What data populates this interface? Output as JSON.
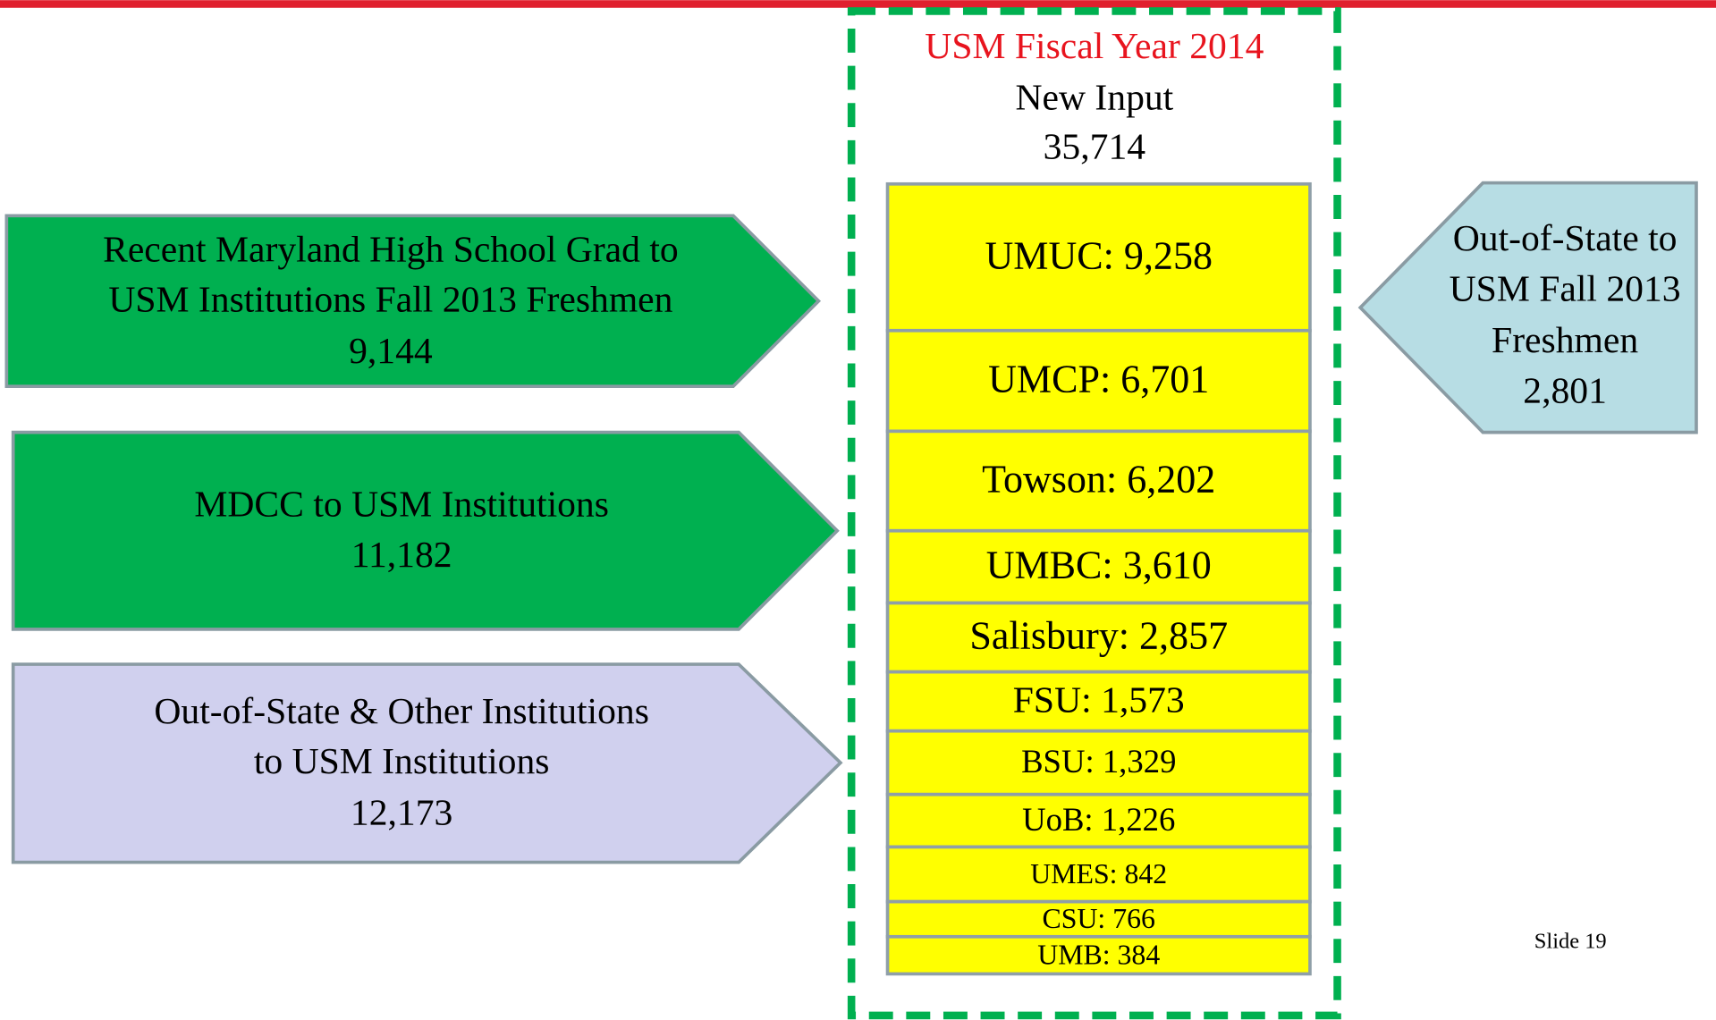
{
  "header": {
    "title": "USM Fiscal Year 2014",
    "subtitle": "New Input",
    "total": "35,714"
  },
  "inputs": [
    {
      "lines": [
        "Recent Maryland High School Grad to",
        "USM Institutions Fall 2013 Freshmen",
        "9,144"
      ]
    },
    {
      "lines": [
        "MDCC to USM Institutions",
        "11,182"
      ]
    },
    {
      "lines": [
        "Out-of-State & Other Institutions",
        "to USM Institutions",
        "12,173"
      ]
    },
    {
      "lines": [
        "Out-of-State to",
        "USM Fall 2013",
        "Freshmen",
        "2,801"
      ]
    }
  ],
  "institutions": [
    "UMUC: 9,258",
    "UMCP: 6,701",
    "Towson: 6,202",
    "UMBC: 3,610",
    "Salisbury: 2,857",
    "FSU: 1,573",
    "BSU: 1,329",
    "UoB: 1,226",
    "UMES: 842",
    "CSU: 766",
    "UMB: 384"
  ],
  "footer": "Slide 19"
}
